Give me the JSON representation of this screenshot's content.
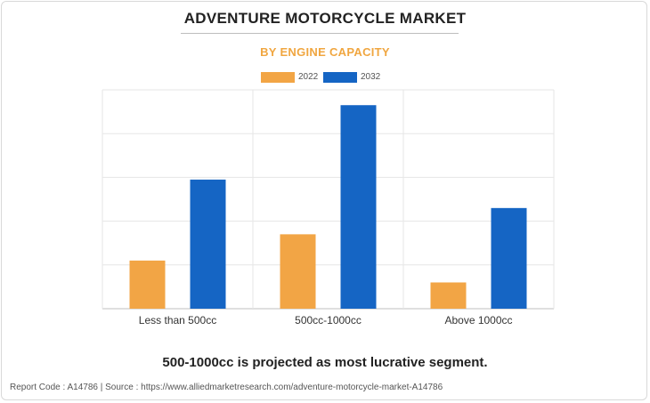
{
  "colors": {
    "series_2022": "#f2a545",
    "series_2032": "#1565c4"
  },
  "footer": {
    "note": "500-1000cc is projected as most lucrative segment.",
    "source": "Report Code : A14786  |  Source : https://www.alliedmarketresearch.com/adventure-motorcycle-market-A14786"
  },
  "chart_data": {
    "type": "bar",
    "title": "ADVENTURE MOTORCYCLE MARKET",
    "subtitle": "BY ENGINE CAPACITY",
    "xlabel": "",
    "ylabel": "",
    "categories": [
      "Less than 500cc",
      "500cc-1000cc",
      "Above 1000cc"
    ],
    "series": [
      {
        "name": "2022",
        "values": [
          1.1,
          1.7,
          0.6
        ]
      },
      {
        "name": "2032",
        "values": [
          2.95,
          4.65,
          2.3
        ]
      }
    ],
    "ylim": [
      0,
      5
    ],
    "y_tick_labels_shown": false,
    "grid": true,
    "legend": "top-center"
  }
}
